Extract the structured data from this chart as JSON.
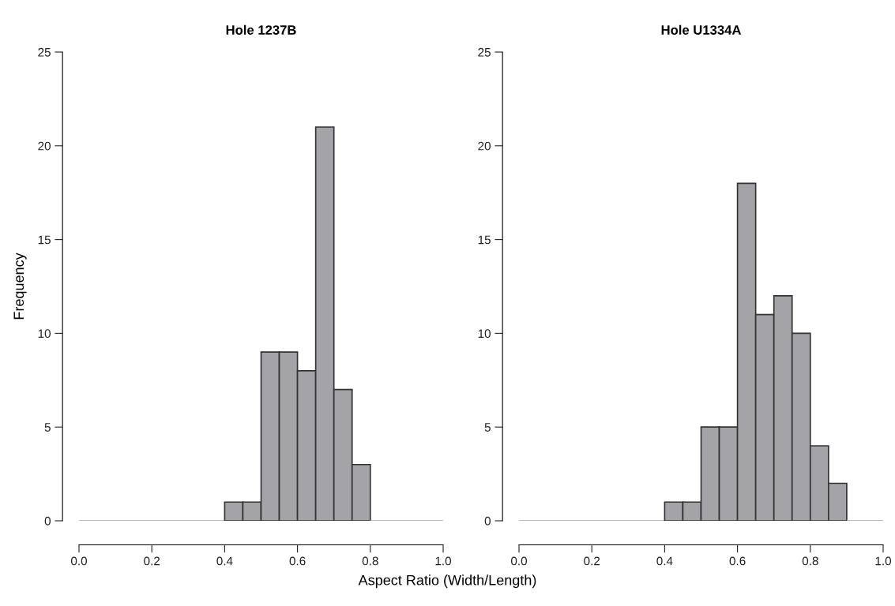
{
  "chart_data": [
    {
      "type": "histogram",
      "title": "Hole 1237B",
      "ylabel": "Frequency",
      "xlabel": "Aspect Ratio (Width/Length)",
      "bins": [
        0.0,
        0.05,
        0.1,
        0.15,
        0.2,
        0.25,
        0.3,
        0.35,
        0.4,
        0.45,
        0.5,
        0.55,
        0.6,
        0.65,
        0.7,
        0.75,
        0.8,
        0.85,
        0.9,
        0.95,
        1.0
      ],
      "values": [
        0,
        0,
        0,
        0,
        0,
        0,
        0,
        0,
        1,
        1,
        9,
        9,
        8,
        21,
        7,
        3,
        0,
        0,
        0,
        0
      ],
      "color": "#a3a3a8",
      "xlim": [
        0.0,
        1.0
      ],
      "ylim": [
        0,
        25
      ],
      "xticks": [
        {
          "value": 0.0,
          "label": "0.0"
        },
        {
          "value": 0.2,
          "label": "0.2"
        },
        {
          "value": 0.4,
          "label": "0.4"
        },
        {
          "value": 0.6,
          "label": "0.6"
        },
        {
          "value": 0.8,
          "label": "0.8"
        },
        {
          "value": 1.0,
          "label": "1.0"
        }
      ],
      "yticks": [
        0,
        5,
        10,
        15,
        20,
        25
      ],
      "grid": false
    },
    {
      "type": "histogram",
      "title": "Hole U1334A",
      "bins": [
        0.0,
        0.05,
        0.1,
        0.15,
        0.2,
        0.25,
        0.3,
        0.35,
        0.4,
        0.45,
        0.5,
        0.55,
        0.6,
        0.65,
        0.7,
        0.75,
        0.8,
        0.85,
        0.9,
        0.95,
        1.0
      ],
      "values": [
        0,
        0,
        0,
        0,
        0,
        0,
        0,
        0,
        1,
        1,
        5,
        5,
        18,
        11,
        12,
        10,
        4,
        2,
        0,
        0
      ],
      "color": "#a3a3a8",
      "xlim": [
        0.0,
        1.0
      ],
      "ylim": [
        0,
        25
      ],
      "xticks": [
        {
          "value": 0.0,
          "label": "0.0"
        },
        {
          "value": 0.2,
          "label": "0.2"
        },
        {
          "value": 0.4,
          "label": "0.4"
        },
        {
          "value": 0.6,
          "label": "0.6"
        },
        {
          "value": 0.8,
          "label": "0.8"
        },
        {
          "value": 1.0,
          "label": "1.0"
        }
      ],
      "yticks": [
        0,
        5,
        10,
        15,
        20,
        25
      ],
      "grid": false
    }
  ]
}
